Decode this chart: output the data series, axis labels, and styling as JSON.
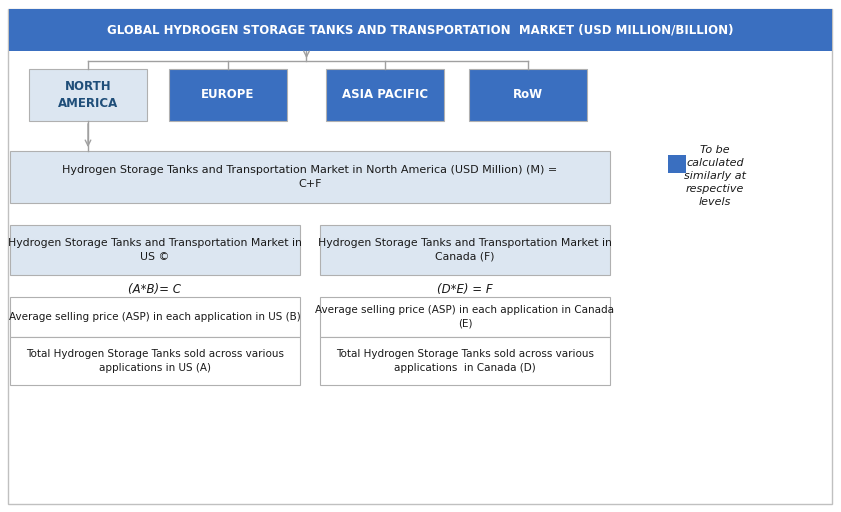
{
  "title": "GLOBAL HYDROGEN STORAGE TANKS AND TRANSPORTATION  MARKET (USD MILLION/BILLION)",
  "title_bg": "#3a6fc0",
  "title_color": "#ffffff",
  "regions": [
    "NORTH\nAMERICA",
    "EUROPE",
    "ASIA PACIFIC",
    "RoW"
  ],
  "region_bg_colors": [
    "#dce6f1",
    "#3a6fc0",
    "#3a6fc0",
    "#3a6fc0"
  ],
  "region_text_colors": [
    "#1f4e79",
    "#ffffff",
    "#ffffff",
    "#ffffff"
  ],
  "north_america_box_text": "Hydrogen Storage Tanks and Transportation Market in North America (USD Million) (M) =\nC+F",
  "north_america_box_bg": "#dce6f1",
  "us_box_text": "Hydrogen Storage Tanks and Transportation Market in\nUS ©",
  "canada_box_text": "Hydrogen Storage Tanks and Transportation Market in\nCanada (F)",
  "sub_box_bg": "#dce6f1",
  "us_formula": "(A*B)= C",
  "canada_formula": "(D*E) = F",
  "us_asp_text": "Average selling price (ASP) in each application in US (B)",
  "canada_asp_text": "Average selling price (ASP) in each application in Canada\n(E)",
  "us_total_text": "Total Hydrogen Storage Tanks sold across various\napplications in US (A)",
  "canada_total_text": "Total Hydrogen Storage Tanks sold across various\napplications  in Canada (D)",
  "legend_text": "To be\ncalculated\nsimilarly at\nrespective\nlevels",
  "legend_box_color": "#3a6fc0",
  "bg_color": "#ffffff",
  "border_color": "#b0b0b0",
  "arrow_color": "#a0a0a0",
  "figw": 8.41,
  "figh": 5.12,
  "dpi": 100
}
